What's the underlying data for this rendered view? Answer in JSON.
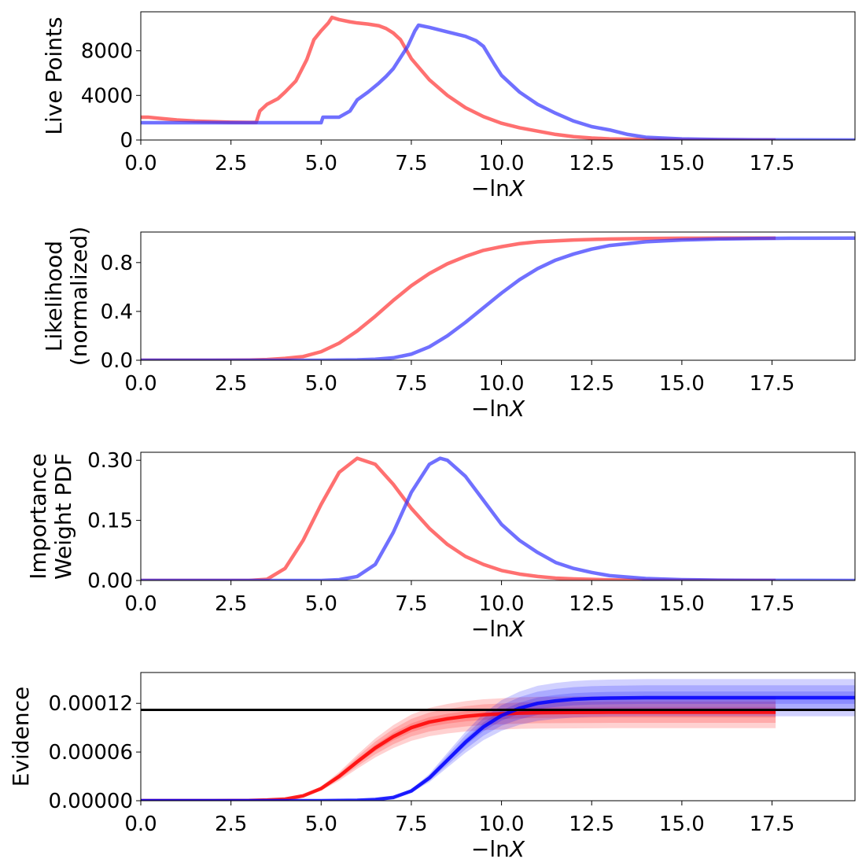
{
  "chart_data": [
    {
      "type": "line",
      "ylabel": [
        "Live Points"
      ],
      "xlabel_main": "−ln",
      "xlabel_var": "X",
      "xlim": [
        0,
        19.8
      ],
      "ylim": [
        0,
        11500
      ],
      "xticks": [
        0,
        2.5,
        5,
        7.5,
        10,
        12.5,
        15,
        17.5
      ],
      "xtick_labels": [
        "0.0",
        "2.5",
        "5.0",
        "7.5",
        "10.0",
        "12.5",
        "15.0",
        "17.5"
      ],
      "yticks": [
        0,
        4000,
        8000
      ],
      "ytick_labels": [
        "0",
        "4000",
        "8000"
      ],
      "series": [
        {
          "color": "#ff3333",
          "x": [
            0,
            0.2,
            0.5,
            1,
            1.5,
            2,
            2.5,
            3,
            3.2,
            3.3,
            3.5,
            3.8,
            4.0,
            4.3,
            4.6,
            4.8,
            5.0,
            5.2,
            5.3,
            5.5,
            5.8,
            6.0,
            6.3,
            6.6,
            6.8,
            7.0,
            7.2,
            7.5,
            8.0,
            8.5,
            9.0,
            9.5,
            10.0,
            10.5,
            11.0,
            11.5,
            12.0,
            12.5,
            13.0,
            14.0,
            15.0,
            16.0,
            17.0,
            17.6
          ],
          "y": [
            2050,
            2050,
            1950,
            1800,
            1700,
            1650,
            1600,
            1580,
            1580,
            2600,
            3200,
            3700,
            4300,
            5300,
            7200,
            9000,
            9800,
            10500,
            11000,
            10800,
            10600,
            10500,
            10400,
            10250,
            10000,
            9600,
            9000,
            7300,
            5400,
            4000,
            2900,
            2100,
            1500,
            1100,
            800,
            500,
            300,
            180,
            100,
            40,
            15,
            5,
            2,
            0
          ]
        },
        {
          "color": "#3333ff",
          "x": [
            0,
            1,
            2,
            3,
            4,
            5.0,
            5.05,
            5.5,
            5.8,
            6.0,
            6.3,
            6.6,
            6.8,
            7.0,
            7.2,
            7.4,
            7.6,
            7.7,
            8.0,
            8.5,
            9.0,
            9.3,
            9.5,
            9.8,
            10.0,
            10.5,
            11.0,
            11.5,
            12.0,
            12.5,
            13.0,
            13.5,
            14.0,
            15.0,
            16.0,
            17.0,
            18.0,
            19.8
          ],
          "y": [
            1550,
            1550,
            1550,
            1550,
            1550,
            1550,
            2050,
            2050,
            2600,
            3600,
            4300,
            5100,
            5700,
            6400,
            7400,
            8400,
            9800,
            10300,
            10100,
            9700,
            9300,
            8900,
            8400,
            6800,
            5800,
            4300,
            3200,
            2400,
            1700,
            1200,
            900,
            500,
            250,
            100,
            40,
            15,
            5,
            2
          ]
        }
      ]
    },
    {
      "type": "line",
      "ylabel": [
        "Likelihood",
        "(normalized)"
      ],
      "xlabel_main": "−ln",
      "xlabel_var": "X",
      "xlim": [
        0,
        19.8
      ],
      "ylim": [
        0,
        1.05
      ],
      "xticks": [
        0,
        2.5,
        5,
        7.5,
        10,
        12.5,
        15,
        17.5
      ],
      "xtick_labels": [
        "0.0",
        "2.5",
        "5.0",
        "7.5",
        "10.0",
        "12.5",
        "15.0",
        "17.5"
      ],
      "yticks": [
        0,
        0.4,
        0.8
      ],
      "ytick_labels": [
        "0.0",
        "0.4",
        "0.8"
      ],
      "series": [
        {
          "color": "#ff3333",
          "x": [
            0,
            2,
            3,
            3.5,
            4.0,
            4.5,
            5.0,
            5.5,
            6.0,
            6.5,
            7.0,
            7.5,
            8.0,
            8.5,
            9.0,
            9.5,
            10.0,
            10.5,
            11.0,
            12.0,
            13.0,
            14.0,
            15.0,
            16.0,
            17.6
          ],
          "y": [
            0,
            0,
            0.002,
            0.006,
            0.015,
            0.03,
            0.07,
            0.14,
            0.24,
            0.36,
            0.49,
            0.61,
            0.71,
            0.79,
            0.85,
            0.9,
            0.93,
            0.955,
            0.97,
            0.985,
            0.993,
            0.997,
            0.999,
            1.0,
            1.0
          ]
        },
        {
          "color": "#3333ff",
          "x": [
            0,
            3,
            5,
            6.0,
            6.5,
            7.0,
            7.5,
            8.0,
            8.5,
            9.0,
            9.5,
            10.0,
            10.5,
            11.0,
            11.5,
            12.0,
            12.5,
            13.0,
            14.0,
            15.0,
            16.0,
            17.0,
            18.0,
            19.8
          ],
          "y": [
            0,
            0,
            0,
            0.003,
            0.008,
            0.02,
            0.05,
            0.11,
            0.2,
            0.31,
            0.43,
            0.55,
            0.66,
            0.75,
            0.82,
            0.87,
            0.91,
            0.94,
            0.97,
            0.985,
            0.993,
            0.997,
            0.999,
            1.0
          ]
        }
      ]
    },
    {
      "type": "line",
      "ylabel": [
        "Importance",
        "Weight PDF"
      ],
      "xlabel_main": "−ln",
      "xlabel_var": "X",
      "xlim": [
        0,
        19.8
      ],
      "ylim": [
        0,
        0.32
      ],
      "xticks": [
        0,
        2.5,
        5,
        7.5,
        10,
        12.5,
        15,
        17.5
      ],
      "xtick_labels": [
        "0.0",
        "2.5",
        "5.0",
        "7.5",
        "10.0",
        "12.5",
        "15.0",
        "17.5"
      ],
      "yticks": [
        0,
        0.15,
        0.3
      ],
      "ytick_labels": [
        "0.00",
        "0.15",
        "0.30"
      ],
      "series": [
        {
          "color": "#ff3333",
          "x": [
            0,
            3.0,
            3.5,
            4.0,
            4.5,
            5.0,
            5.5,
            6.0,
            6.5,
            7.0,
            7.5,
            8.0,
            8.5,
            9.0,
            9.5,
            10.0,
            10.5,
            11.0,
            11.5,
            12.0,
            13.0,
            14.0,
            15.0,
            17.6
          ],
          "y": [
            0,
            0.0,
            0.003,
            0.03,
            0.1,
            0.19,
            0.27,
            0.305,
            0.29,
            0.24,
            0.18,
            0.13,
            0.09,
            0.06,
            0.04,
            0.025,
            0.016,
            0.01,
            0.006,
            0.004,
            0.0015,
            0.0005,
            0.0002,
            0
          ]
        },
        {
          "color": "#3333ff",
          "x": [
            0,
            5.0,
            5.5,
            6.0,
            6.5,
            7.0,
            7.5,
            8.0,
            8.3,
            8.5,
            9.0,
            9.5,
            10.0,
            10.5,
            11.0,
            11.5,
            12.0,
            12.5,
            13.0,
            14.0,
            15.0,
            16.0,
            17.0,
            19.8
          ],
          "y": [
            0,
            0.0,
            0.002,
            0.01,
            0.04,
            0.12,
            0.22,
            0.29,
            0.305,
            0.3,
            0.26,
            0.2,
            0.14,
            0.1,
            0.07,
            0.045,
            0.03,
            0.02,
            0.012,
            0.005,
            0.002,
            0.0008,
            0.0003,
            0
          ]
        }
      ]
    },
    {
      "type": "area",
      "ylabel": [
        "Evidence"
      ],
      "xlabel_main": "−ln",
      "xlabel_var": "X",
      "xlim": [
        0,
        19.8
      ],
      "ylim": [
        0,
        0.000158
      ],
      "xticks": [
        0,
        2.5,
        5,
        7.5,
        10,
        12.5,
        15,
        17.5
      ],
      "xtick_labels": [
        "0.0",
        "2.5",
        "5.0",
        "7.5",
        "10.0",
        "12.5",
        "15.0",
        "17.5"
      ],
      "yticks": [
        0,
        6e-05,
        0.00012
      ],
      "ytick_labels": [
        "0.00000",
        "0.00006",
        "0.00012"
      ],
      "reference_line": 0.000112,
      "series": [
        {
          "color": "#ff0000",
          "band_spread": [
            0.06,
            0.12,
            0.18
          ],
          "x": [
            0,
            2,
            3,
            3.5,
            4.0,
            4.5,
            5.0,
            5.5,
            6.0,
            6.5,
            7.0,
            7.5,
            8.0,
            8.5,
            9.0,
            9.5,
            10.0,
            10.5,
            11.0,
            12.0,
            13.0,
            14.0,
            15.0,
            16.0,
            17.6
          ],
          "y": [
            0,
            0,
            2e-07,
            8e-07,
            2e-06,
            6e-06,
            1.5e-05,
            3e-05,
            4.8e-05,
            6.5e-05,
            7.9e-05,
            9e-05,
            9.7e-05,
            0.000101,
            0.000104,
            0.000106,
            0.000107,
            0.000108,
            0.0001085,
            0.0001088,
            0.000109,
            0.000109,
            0.000109,
            0.000109,
            0.000109
          ]
        },
        {
          "color": "#0000ff",
          "band_spread": [
            0.06,
            0.12,
            0.18
          ],
          "x": [
            0,
            3,
            5,
            6.0,
            6.5,
            7.0,
            7.5,
            8.0,
            8.5,
            9.0,
            9.5,
            10.0,
            10.5,
            11.0,
            11.5,
            12.0,
            12.5,
            13.0,
            14.0,
            15.0,
            16.0,
            17.0,
            18.0,
            19.8
          ],
          "y": [
            0,
            0,
            0,
            5e-07,
            1.5e-06,
            4e-06,
            1.2e-05,
            2.8e-05,
            5e-05,
            7.2e-05,
            9.1e-05,
            0.000105,
            0.000114,
            0.00012,
            0.000123,
            0.000125,
            0.000126,
            0.0001265,
            0.000127,
            0.000127,
            0.000127,
            0.000127,
            0.000127,
            0.000127
          ]
        }
      ]
    }
  ]
}
